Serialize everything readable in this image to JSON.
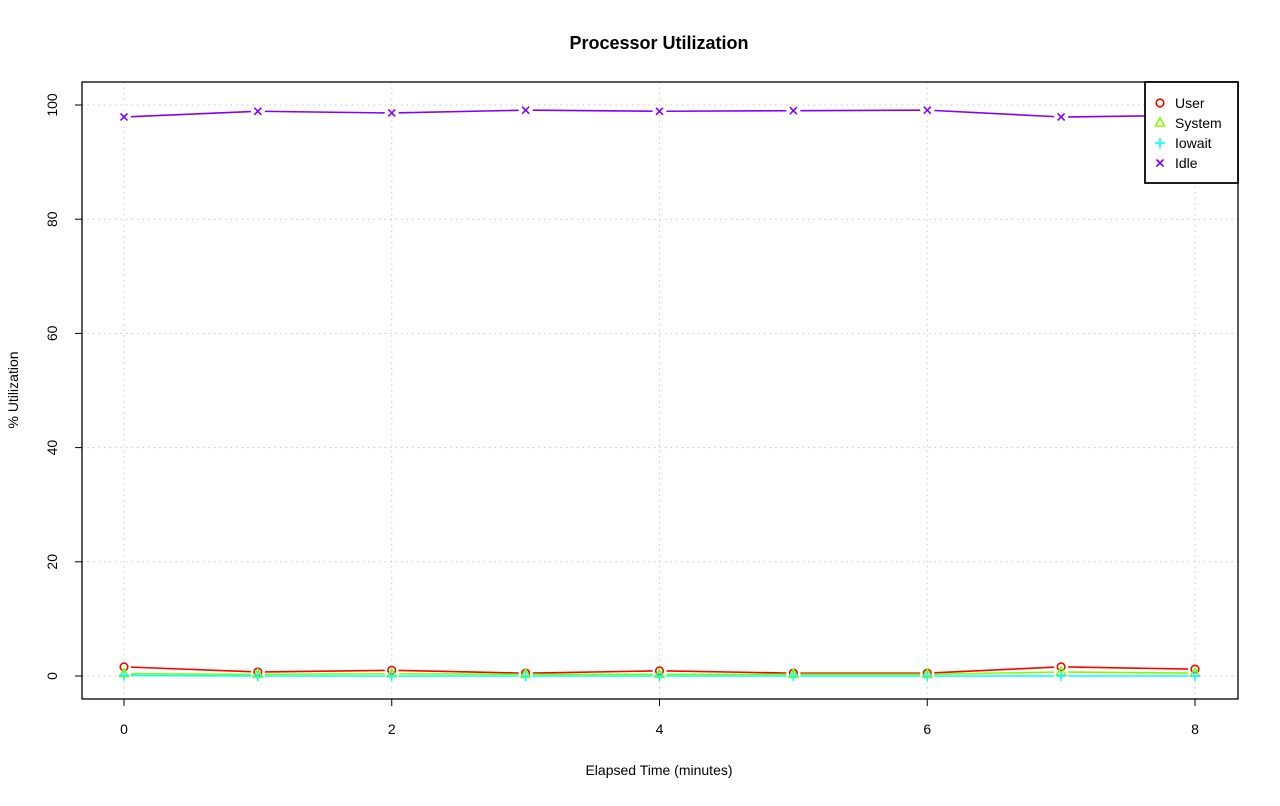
{
  "chart_data": {
    "type": "line",
    "title": "Processor Utilization",
    "xlabel": "Elapsed Time (minutes)",
    "ylabel": "% Utilization",
    "xlim": [
      0,
      8
    ],
    "ylim": [
      0,
      100
    ],
    "x_ticks": [
      "0",
      "2",
      "4",
      "6",
      "8"
    ],
    "y_ticks": [
      "0",
      "20",
      "40",
      "60",
      "80",
      "100"
    ],
    "grid": true,
    "legend_position": "top-right",
    "x": [
      0,
      1,
      2,
      3,
      4,
      5,
      6,
      7,
      8
    ],
    "series": [
      {
        "name": "User",
        "color": "#ff0000",
        "marker": "circle",
        "values": [
          1.6,
          0.7,
          1.0,
          0.5,
          0.9,
          0.5,
          0.5,
          1.6,
          1.2
        ]
      },
      {
        "name": "System",
        "color": "#80ff00",
        "marker": "triangle",
        "values": [
          0.4,
          0.3,
          0.4,
          0.3,
          0.3,
          0.3,
          0.3,
          0.7,
          0.5
        ]
      },
      {
        "name": "Iowait",
        "color": "#00ffff",
        "marker": "plus",
        "values": [
          0.1,
          0.0,
          0.0,
          0.0,
          0.0,
          0.0,
          0.0,
          0.0,
          0.0
        ]
      },
      {
        "name": "Idle",
        "color": "#8000ff",
        "marker": "cross",
        "values": [
          97.9,
          98.9,
          98.6,
          99.1,
          98.9,
          99.0,
          99.1,
          97.9,
          98.2
        ]
      }
    ]
  }
}
